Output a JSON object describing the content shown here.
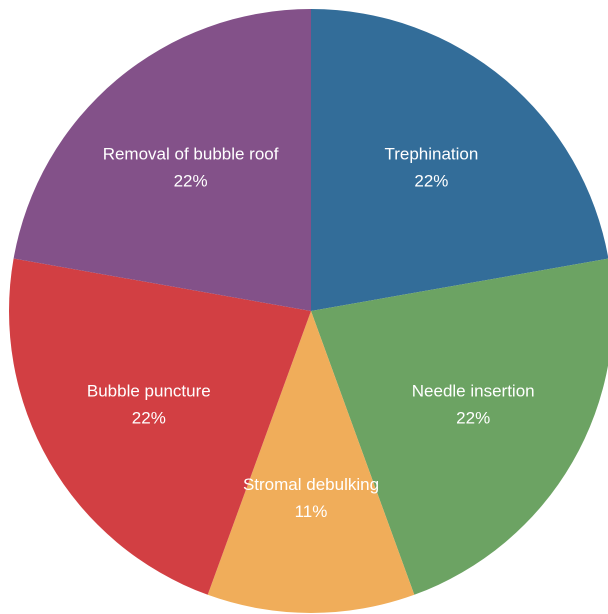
{
  "chart_data": {
    "type": "pie",
    "title": "",
    "start_angle_deg": -90,
    "direction": "clockwise",
    "slices": [
      {
        "label": "Trephination",
        "value": 22,
        "value_label": "22%",
        "color": "#336d99"
      },
      {
        "label": "Needle insertion",
        "value": 22,
        "value_label": "22%",
        "color": "#6ca363"
      },
      {
        "label": "Stromal debulking",
        "value": 11,
        "value_label": "11%",
        "color": "#f0ad5a"
      },
      {
        "label": "Bubble puncture",
        "value": 22,
        "value_label": "22%",
        "color": "#d23f43"
      },
      {
        "label": "Removal of bubble roof",
        "value": 22,
        "value_label": "22%",
        "color": "#835189"
      }
    ]
  }
}
